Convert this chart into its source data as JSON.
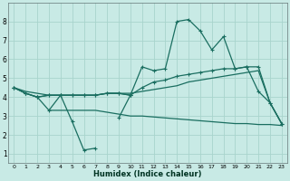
{
  "xlabel": "Humidex (Indice chaleur)",
  "background_color": "#c8eae5",
  "grid_color": "#a8d4cc",
  "line_color": "#1a6e60",
  "x_values": [
    0,
    1,
    2,
    3,
    4,
    5,
    6,
    7,
    8,
    9,
    10,
    11,
    12,
    13,
    14,
    15,
    16,
    17,
    18,
    19,
    20,
    21,
    22,
    23
  ],
  "line_zigzag": [
    4.5,
    4.2,
    4.0,
    3.3,
    4.1,
    2.7,
    1.2,
    1.3,
    null,
    2.9,
    4.1,
    null,
    null,
    null,
    null,
    null,
    null,
    null,
    null,
    null,
    null,
    null,
    null,
    null
  ],
  "line_mid": [
    4.5,
    4.2,
    4.0,
    4.1,
    4.1,
    4.1,
    4.1,
    4.1,
    4.2,
    4.2,
    4.1,
    4.5,
    4.8,
    4.9,
    5.1,
    5.2,
    5.3,
    5.4,
    5.5,
    5.5,
    5.6,
    5.6,
    3.7,
    2.6
  ],
  "line_top": [
    4.5,
    4.2,
    4.0,
    4.1,
    4.1,
    4.1,
    4.1,
    4.1,
    4.2,
    4.2,
    4.1,
    5.6,
    5.4,
    5.5,
    8.0,
    8.1,
    7.5,
    6.5,
    7.2,
    5.5,
    5.6,
    4.3,
    3.7,
    2.6
  ],
  "line_straight": [
    4.5,
    4.3,
    4.2,
    4.1,
    4.1,
    4.1,
    4.1,
    4.1,
    4.2,
    4.2,
    4.2,
    4.3,
    4.4,
    4.5,
    4.6,
    4.8,
    4.9,
    5.0,
    5.1,
    5.2,
    5.3,
    5.4,
    3.7,
    2.6
  ],
  "line_bottom": [
    4.5,
    null,
    null,
    3.3,
    3.3,
    3.3,
    3.3,
    3.3,
    3.2,
    3.1,
    3.0,
    3.0,
    2.95,
    2.9,
    2.85,
    2.8,
    2.75,
    2.7,
    2.65,
    2.6,
    2.6,
    2.55,
    2.55,
    2.5
  ],
  "ylim": [
    0.5,
    9.0
  ],
  "xlim": [
    -0.5,
    23.5
  ]
}
